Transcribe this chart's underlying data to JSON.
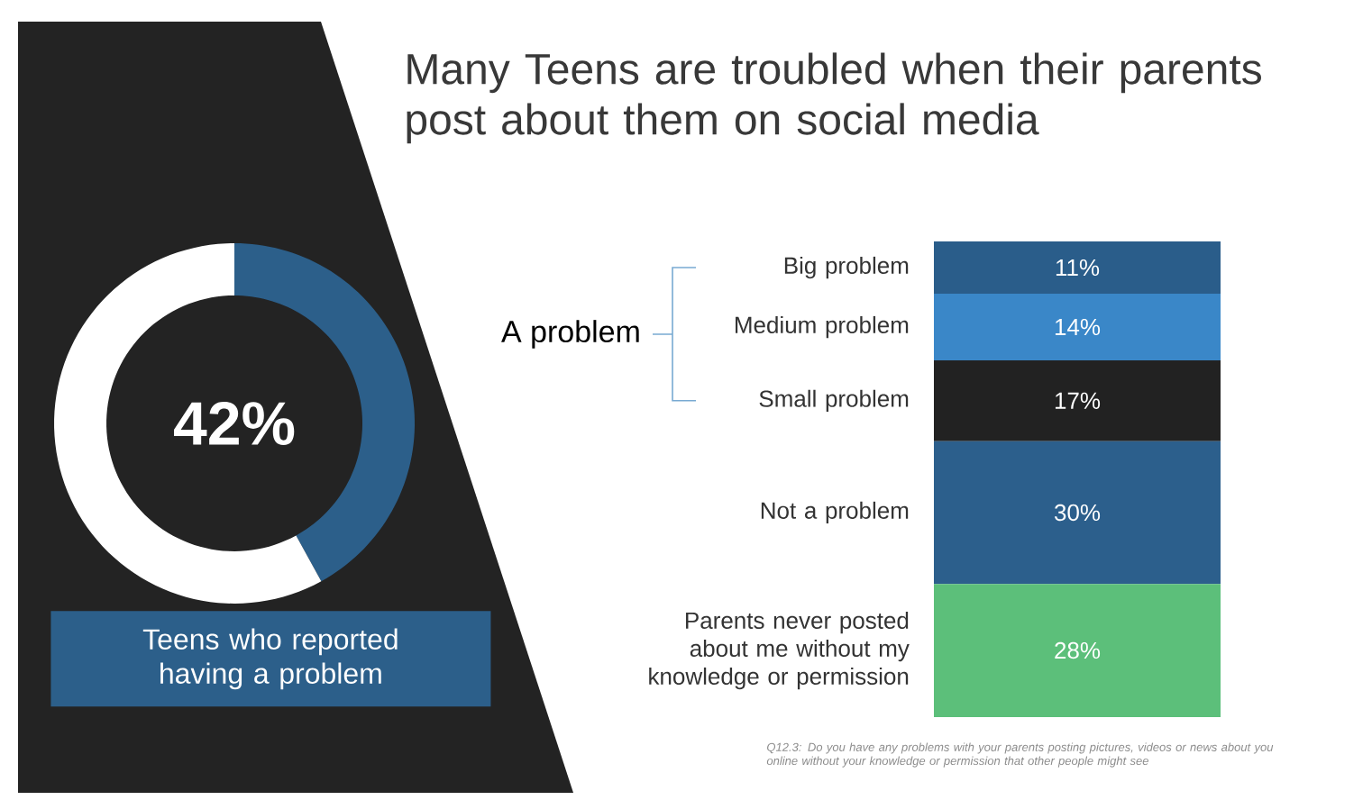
{
  "chart_data": [
    {
      "type": "donut",
      "title": "Teens who reported having a problem",
      "annotations": [
        "42%"
      ],
      "categories": [
        null,
        null
      ],
      "values": [
        42,
        58
      ],
      "colors": [
        "#2c5f8a",
        "#ffffff"
      ]
    },
    {
      "type": "bar",
      "stacked": true,
      "title": "Many Teens are troubled when their parents post about them on social media",
      "categories": [
        null
      ],
      "series": [
        {
          "name": "Parents never posted about me without my knowledge or permission",
          "color": "#5cbf7a",
          "values": [
            28
          ],
          "value_labels": [
            "28%"
          ]
        },
        {
          "name": "Not a problem",
          "color": "#2c5f8c",
          "values": [
            30
          ],
          "value_labels": [
            "30%"
          ]
        },
        {
          "name": "Small problem",
          "color": "#222222",
          "values": [
            17
          ],
          "value_labels": [
            "17%"
          ]
        },
        {
          "name": "Medium problem",
          "color": "#3a87c8",
          "values": [
            14
          ],
          "value_labels": [
            "14%"
          ]
        },
        {
          "name": "Big problem",
          "color": "#2a5d8a",
          "values": [
            11
          ],
          "value_labels": [
            "11%"
          ]
        }
      ],
      "annotations": [
        "A problem",
        "Q12.3: Do you have any problems with your parents posting pictures, videos or news about you online without your knowledge or permission that other people might see"
      ]
    }
  ]
}
